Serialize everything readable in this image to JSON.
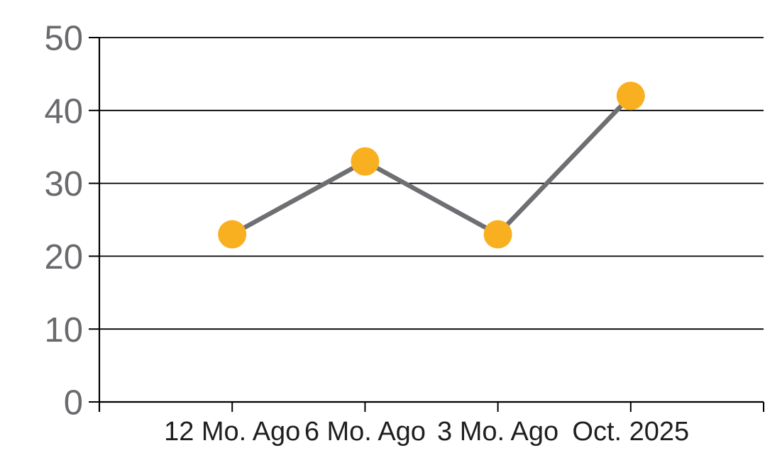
{
  "chart_data": {
    "type": "line",
    "categories": [
      "12 Mo. Ago",
      "6 Mo. Ago",
      "3 Mo. Ago",
      "Oct. 2025"
    ],
    "values": [
      23,
      33,
      23,
      42
    ],
    "series": [
      {
        "name": "series-1",
        "values": [
          23,
          33,
          23,
          42
        ]
      }
    ],
    "title": "",
    "xlabel": "",
    "ylabel": "",
    "ylim": [
      0,
      50
    ],
    "yticks": [
      0,
      10,
      20,
      30,
      40,
      50
    ],
    "grid": "horizontal",
    "legend": "none",
    "marker_shape": "circle",
    "colors": {
      "marker": "#F9B020",
      "line": "#6E6F72",
      "grid": "#000000",
      "axis": "#000000",
      "y_tick_label": "#696A6D",
      "x_tick_label": "#1F1F21",
      "background": "#FFFFFF"
    }
  }
}
